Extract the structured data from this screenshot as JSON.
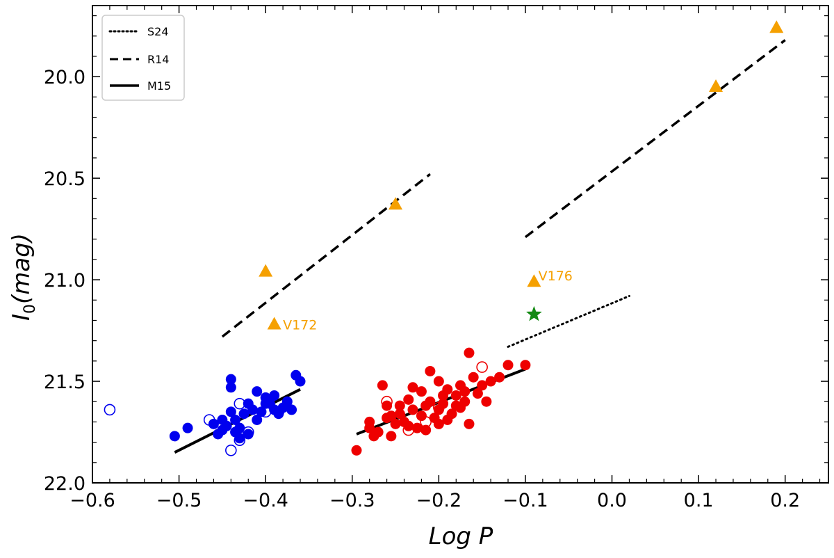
{
  "chart_data": {
    "type": "scatter",
    "title": "",
    "xlabel": "Log P",
    "ylabel_main": "I",
    "ylabel_sub": "0",
    "ylabel_rest": "(mag)",
    "xlim": [
      -0.6,
      0.25
    ],
    "ylim": [
      22.0,
      19.65
    ],
    "y_inverted": true,
    "xticks": [
      -0.6,
      -0.5,
      -0.4,
      -0.3,
      -0.2,
      -0.1,
      0.0,
      0.1,
      0.2
    ],
    "xtick_labels": [
      "−0.6",
      "−0.5",
      "−0.4",
      "−0.3",
      "−0.2",
      "−0.1",
      "0.0",
      "0.1",
      "0.2"
    ],
    "yticks": [
      20.0,
      20.5,
      21.0,
      21.5,
      22.0
    ],
    "ytick_labels": [
      "20.0",
      "20.5",
      "21.0",
      "21.5",
      "22.0"
    ],
    "colors": {
      "blue": "#0000ee",
      "red": "#ee0000",
      "orange": "#f5a000",
      "green": "#138a13",
      "line": "#000000"
    },
    "legend": {
      "placement": "top-left",
      "entries": [
        {
          "label": "S24",
          "style": "dotted"
        },
        {
          "label": "R14",
          "style": "dashed"
        },
        {
          "label": "M15",
          "style": "solid"
        }
      ]
    },
    "lines": [
      {
        "name": "S24",
        "style": "dotted",
        "x": [
          -0.12,
          0.02
        ],
        "y": [
          21.33,
          21.08
        ]
      },
      {
        "name": "R14",
        "style": "dashed",
        "x": [
          -0.45,
          -0.21
        ],
        "y": [
          21.28,
          20.48
        ]
      },
      {
        "name": "R14",
        "style": "dashed",
        "x": [
          -0.1,
          0.2
        ],
        "y": [
          20.79,
          19.82
        ]
      },
      {
        "name": "M15",
        "style": "solid",
        "x": [
          -0.505,
          -0.36
        ],
        "y": [
          21.85,
          21.54
        ]
      },
      {
        "name": "M15",
        "style": "solid",
        "x": [
          -0.295,
          -0.1
        ],
        "y": [
          21.76,
          21.44
        ]
      }
    ],
    "series": [
      {
        "name": "blue-filled",
        "color": "blue",
        "marker": "circle",
        "fill": true,
        "points": [
          [
            -0.505,
            21.77
          ],
          [
            -0.49,
            21.73
          ],
          [
            -0.46,
            21.71
          ],
          [
            -0.45,
            21.74
          ],
          [
            -0.445,
            21.72
          ],
          [
            -0.44,
            21.65
          ],
          [
            -0.44,
            21.53
          ],
          [
            -0.435,
            21.69
          ],
          [
            -0.43,
            21.73
          ],
          [
            -0.425,
            21.66
          ],
          [
            -0.42,
            21.61
          ],
          [
            -0.42,
            21.76
          ],
          [
            -0.415,
            21.64
          ],
          [
            -0.41,
            21.69
          ],
          [
            -0.41,
            21.55
          ],
          [
            -0.405,
            21.65
          ],
          [
            -0.4,
            21.61
          ],
          [
            -0.4,
            21.58
          ],
          [
            -0.395,
            21.61
          ],
          [
            -0.39,
            21.64
          ],
          [
            -0.385,
            21.66
          ],
          [
            -0.38,
            21.63
          ],
          [
            -0.375,
            21.6
          ],
          [
            -0.37,
            21.64
          ],
          [
            -0.365,
            21.47
          ],
          [
            -0.36,
            21.5
          ],
          [
            -0.45,
            21.69
          ],
          [
            -0.43,
            21.78
          ],
          [
            -0.455,
            21.76
          ],
          [
            -0.435,
            21.75
          ],
          [
            -0.44,
            21.49
          ],
          [
            -0.39,
            21.57
          ]
        ]
      },
      {
        "name": "blue-open",
        "color": "blue",
        "marker": "circle",
        "fill": false,
        "points": [
          [
            -0.58,
            21.64
          ],
          [
            -0.465,
            21.69
          ],
          [
            -0.44,
            21.84
          ],
          [
            -0.43,
            21.61
          ],
          [
            -0.43,
            21.79
          ],
          [
            -0.42,
            21.75
          ],
          [
            -0.4,
            21.65
          ],
          [
            -0.385,
            21.65
          ]
        ]
      },
      {
        "name": "red-filled",
        "color": "red",
        "marker": "circle",
        "fill": true,
        "points": [
          [
            -0.295,
            21.84
          ],
          [
            -0.28,
            21.73
          ],
          [
            -0.27,
            21.75
          ],
          [
            -0.265,
            21.52
          ],
          [
            -0.26,
            21.68
          ],
          [
            -0.255,
            21.77
          ],
          [
            -0.25,
            21.71
          ],
          [
            -0.245,
            21.66
          ],
          [
            -0.24,
            21.7
          ],
          [
            -0.235,
            21.59
          ],
          [
            -0.23,
            21.64
          ],
          [
            -0.225,
            21.73
          ],
          [
            -0.22,
            21.55
          ],
          [
            -0.215,
            21.62
          ],
          [
            -0.21,
            21.45
          ],
          [
            -0.205,
            21.68
          ],
          [
            -0.2,
            21.5
          ],
          [
            -0.195,
            21.61
          ],
          [
            -0.19,
            21.54
          ],
          [
            -0.185,
            21.66
          ],
          [
            -0.18,
            21.57
          ],
          [
            -0.175,
            21.63
          ],
          [
            -0.17,
            21.6
          ],
          [
            -0.165,
            21.71
          ],
          [
            -0.16,
            21.48
          ],
          [
            -0.155,
            21.56
          ],
          [
            -0.15,
            21.52
          ],
          [
            -0.145,
            21.6
          ],
          [
            -0.14,
            21.5
          ],
          [
            -0.13,
            21.48
          ],
          [
            -0.12,
            21.42
          ],
          [
            -0.1,
            21.42
          ],
          [
            -0.165,
            21.36
          ],
          [
            -0.28,
            21.7
          ],
          [
            -0.255,
            21.67
          ],
          [
            -0.245,
            21.62
          ],
          [
            -0.235,
            21.72
          ],
          [
            -0.22,
            21.67
          ],
          [
            -0.21,
            21.6
          ],
          [
            -0.2,
            21.64
          ],
          [
            -0.19,
            21.69
          ],
          [
            -0.18,
            21.62
          ],
          [
            -0.17,
            21.55
          ],
          [
            -0.2,
            21.71
          ],
          [
            -0.23,
            21.53
          ],
          [
            -0.26,
            21.62
          ],
          [
            -0.275,
            21.77
          ],
          [
            -0.215,
            21.74
          ],
          [
            -0.195,
            21.57
          ],
          [
            -0.175,
            21.52
          ]
        ]
      },
      {
        "name": "red-open",
        "color": "red",
        "marker": "circle",
        "fill": false,
        "points": [
          [
            -0.26,
            21.6
          ],
          [
            -0.245,
            21.67
          ],
          [
            -0.215,
            21.7
          ],
          [
            -0.2,
            21.63
          ],
          [
            -0.15,
            21.43
          ],
          [
            -0.235,
            21.74
          ]
        ]
      },
      {
        "name": "orange-triangles",
        "color": "orange",
        "marker": "triangle",
        "fill": true,
        "points": [
          [
            -0.4,
            20.96
          ],
          [
            -0.39,
            21.22
          ],
          [
            -0.25,
            20.63
          ],
          [
            -0.09,
            21.01
          ],
          [
            0.12,
            20.05
          ],
          [
            0.19,
            19.76
          ]
        ]
      },
      {
        "name": "green-star",
        "color": "green",
        "marker": "star",
        "fill": true,
        "points": [
          [
            -0.09,
            21.17
          ]
        ]
      }
    ],
    "annotations": [
      {
        "text": "V172",
        "x": -0.38,
        "y": 21.22,
        "color": "orange"
      },
      {
        "text": "V176",
        "x": -0.085,
        "y": 20.98,
        "color": "orange"
      }
    ]
  }
}
